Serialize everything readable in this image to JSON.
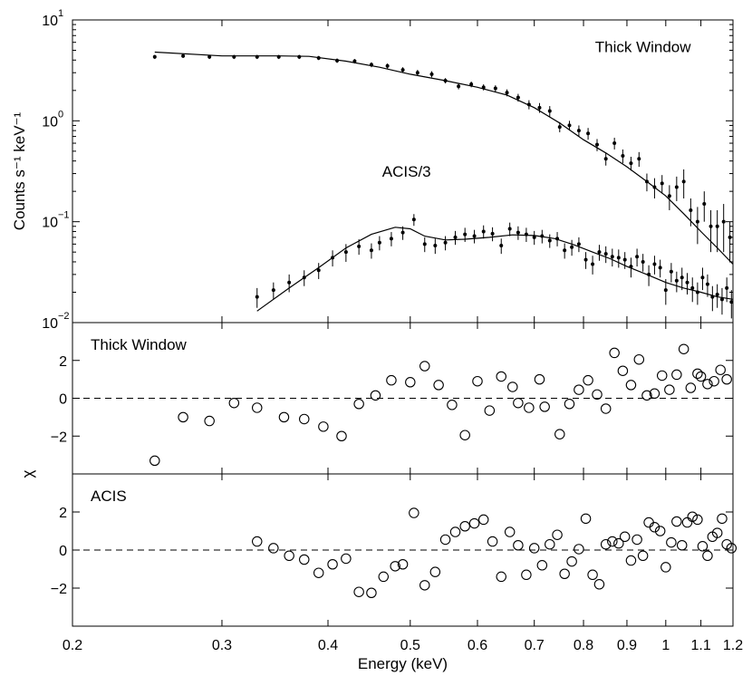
{
  "chart_data": [
    {
      "type": "scatter",
      "panel": "spectrum",
      "ylabel": "Counts s⁻¹ keV⁻¹",
      "yscale": "log",
      "ylim": [
        0.01,
        10
      ],
      "xscale": "log",
      "xlim": [
        0.2,
        1.2
      ],
      "y_ticks": [
        {
          "value": 10,
          "base": "10",
          "exp": "1"
        },
        {
          "value": 1,
          "base": "10",
          "exp": "0"
        },
        {
          "value": 0.1,
          "base": "10",
          "exp": "−1"
        },
        {
          "value": 0.01,
          "base": "10",
          "exp": "−2"
        }
      ],
      "annotations": [
        {
          "text": "Thick Window",
          "x": 0.94,
          "y": 4.8
        },
        {
          "text": "ACIS/3",
          "x": 0.495,
          "y": 0.28
        }
      ],
      "series": [
        {
          "name": "Thick Window data",
          "x": [
            0.25,
            0.27,
            0.29,
            0.31,
            0.33,
            0.35,
            0.37,
            0.39,
            0.41,
            0.43,
            0.45,
            0.47,
            0.49,
            0.51,
            0.53,
            0.55,
            0.57,
            0.59,
            0.61,
            0.63,
            0.65,
            0.67,
            0.69,
            0.71,
            0.73,
            0.75,
            0.77,
            0.79,
            0.81,
            0.83,
            0.85,
            0.87,
            0.89,
            0.91,
            0.93,
            0.95,
            0.97,
            0.99,
            1.01,
            1.03,
            1.05,
            1.07,
            1.09,
            1.11,
            1.13,
            1.15,
            1.17,
            1.19
          ],
          "y": [
            4.3,
            4.4,
            4.3,
            4.3,
            4.3,
            4.3,
            4.3,
            4.2,
            3.95,
            3.9,
            3.6,
            3.5,
            3.2,
            3.0,
            2.9,
            2.5,
            2.2,
            2.3,
            2.15,
            2.1,
            1.9,
            1.7,
            1.45,
            1.35,
            1.25,
            0.87,
            0.9,
            0.8,
            0.75,
            0.58,
            0.42,
            0.6,
            0.45,
            0.38,
            0.42,
            0.25,
            0.22,
            0.24,
            0.18,
            0.22,
            0.25,
            0.13,
            0.1,
            0.15,
            0.09,
            0.09,
            0.1,
            0.07
          ],
          "err_up": [
            0.2,
            0.2,
            0.2,
            0.2,
            0.2,
            0.2,
            0.2,
            0.2,
            0.2,
            0.2,
            0.2,
            0.2,
            0.2,
            0.2,
            0.2,
            0.15,
            0.15,
            0.15,
            0.15,
            0.15,
            0.15,
            0.15,
            0.15,
            0.15,
            0.15,
            0.1,
            0.1,
            0.1,
            0.1,
            0.08,
            0.06,
            0.08,
            0.07,
            0.06,
            0.07,
            0.05,
            0.05,
            0.05,
            0.05,
            0.06,
            0.08,
            0.04,
            0.04,
            0.05,
            0.04,
            0.04,
            0.05,
            0.03
          ],
          "err_down": [
            0.2,
            0.2,
            0.2,
            0.2,
            0.2,
            0.2,
            0.2,
            0.2,
            0.2,
            0.2,
            0.2,
            0.2,
            0.2,
            0.2,
            0.2,
            0.15,
            0.15,
            0.15,
            0.15,
            0.15,
            0.15,
            0.15,
            0.15,
            0.15,
            0.15,
            0.1,
            0.1,
            0.1,
            0.1,
            0.08,
            0.06,
            0.08,
            0.07,
            0.06,
            0.07,
            0.05,
            0.05,
            0.05,
            0.05,
            0.06,
            0.08,
            0.04,
            0.04,
            0.05,
            0.04,
            0.04,
            0.05,
            0.03
          ]
        },
        {
          "name": "Thick Window model",
          "style": "line",
          "x": [
            0.25,
            0.3,
            0.35,
            0.38,
            0.42,
            0.46,
            0.5,
            0.55,
            0.6,
            0.65,
            0.7,
            0.75,
            0.8,
            0.85,
            0.9,
            0.95,
            1.0,
            1.05,
            1.1,
            1.15,
            1.2
          ],
          "y": [
            4.8,
            4.4,
            4.4,
            4.35,
            3.9,
            3.4,
            2.9,
            2.5,
            2.15,
            1.8,
            1.35,
            0.95,
            0.65,
            0.48,
            0.35,
            0.25,
            0.18,
            0.12,
            0.08,
            0.055,
            0.038
          ]
        },
        {
          "name": "ACIS/3 data",
          "x": [
            0.33,
            0.345,
            0.36,
            0.375,
            0.39,
            0.405,
            0.42,
            0.435,
            0.45,
            0.46,
            0.475,
            0.49,
            0.505,
            0.52,
            0.535,
            0.55,
            0.565,
            0.58,
            0.595,
            0.61,
            0.625,
            0.64,
            0.655,
            0.67,
            0.685,
            0.7,
            0.715,
            0.73,
            0.745,
            0.76,
            0.775,
            0.79,
            0.805,
            0.82,
            0.835,
            0.85,
            0.865,
            0.88,
            0.895,
            0.91,
            0.925,
            0.94,
            0.955,
            0.97,
            0.985,
            1.0,
            1.015,
            1.03,
            1.045,
            1.06,
            1.075,
            1.09,
            1.105,
            1.12,
            1.135,
            1.15,
            1.165,
            1.18,
            1.195
          ],
          "y": [
            0.018,
            0.021,
            0.025,
            0.028,
            0.033,
            0.044,
            0.05,
            0.057,
            0.052,
            0.062,
            0.068,
            0.078,
            0.105,
            0.06,
            0.058,
            0.062,
            0.07,
            0.075,
            0.072,
            0.08,
            0.076,
            0.058,
            0.085,
            0.078,
            0.075,
            0.07,
            0.072,
            0.065,
            0.068,
            0.052,
            0.056,
            0.06,
            0.042,
            0.038,
            0.05,
            0.048,
            0.045,
            0.044,
            0.042,
            0.036,
            0.045,
            0.04,
            0.03,
            0.038,
            0.035,
            0.021,
            0.032,
            0.026,
            0.028,
            0.025,
            0.022,
            0.02,
            0.028,
            0.024,
            0.018,
            0.019,
            0.017,
            0.022,
            0.016
          ],
          "err_up": [
            0.004,
            0.004,
            0.005,
            0.005,
            0.006,
            0.008,
            0.01,
            0.01,
            0.009,
            0.01,
            0.011,
            0.012,
            0.014,
            0.01,
            0.01,
            0.01,
            0.011,
            0.012,
            0.011,
            0.012,
            0.012,
            0.01,
            0.013,
            0.012,
            0.012,
            0.011,
            0.011,
            0.01,
            0.011,
            0.009,
            0.01,
            0.01,
            0.008,
            0.008,
            0.009,
            0.009,
            0.009,
            0.009,
            0.008,
            0.008,
            0.009,
            0.008,
            0.007,
            0.008,
            0.007,
            0.006,
            0.007,
            0.006,
            0.007,
            0.006,
            0.006,
            0.005,
            0.007,
            0.006,
            0.005,
            0.005,
            0.005,
            0.006,
            0.005
          ],
          "err_down": [
            0.004,
            0.004,
            0.005,
            0.005,
            0.006,
            0.008,
            0.01,
            0.01,
            0.009,
            0.01,
            0.011,
            0.012,
            0.014,
            0.01,
            0.01,
            0.01,
            0.011,
            0.012,
            0.011,
            0.012,
            0.012,
            0.01,
            0.013,
            0.012,
            0.012,
            0.011,
            0.011,
            0.01,
            0.011,
            0.009,
            0.01,
            0.01,
            0.008,
            0.008,
            0.009,
            0.009,
            0.009,
            0.009,
            0.008,
            0.008,
            0.009,
            0.008,
            0.007,
            0.008,
            0.007,
            0.006,
            0.007,
            0.006,
            0.007,
            0.006,
            0.006,
            0.005,
            0.007,
            0.006,
            0.005,
            0.005,
            0.005,
            0.006,
            0.005
          ]
        },
        {
          "name": "ACIS/3 model",
          "style": "line",
          "x": [
            0.33,
            0.36,
            0.39,
            0.42,
            0.45,
            0.48,
            0.5,
            0.52,
            0.55,
            0.58,
            0.62,
            0.66,
            0.7,
            0.74,
            0.78,
            0.82,
            0.86,
            0.9,
            0.95,
            1.0,
            1.05,
            1.1,
            1.15,
            1.2
          ],
          "y": [
            0.013,
            0.022,
            0.035,
            0.055,
            0.075,
            0.088,
            0.085,
            0.072,
            0.066,
            0.067,
            0.07,
            0.074,
            0.073,
            0.068,
            0.059,
            0.05,
            0.043,
            0.036,
            0.03,
            0.025,
            0.022,
            0.02,
            0.018,
            0.017
          ]
        }
      ]
    },
    {
      "type": "scatter",
      "panel": "residuals",
      "label": "Thick Window",
      "ylim": [
        -4,
        4
      ],
      "yticks": [
        -2,
        0,
        2
      ],
      "xscale": "log",
      "xlim": [
        0.2,
        1.2
      ],
      "x": [
        0.25,
        0.27,
        0.29,
        0.31,
        0.33,
        0.355,
        0.375,
        0.395,
        0.415,
        0.435,
        0.455,
        0.475,
        0.5,
        0.52,
        0.54,
        0.56,
        0.58,
        0.6,
        0.62,
        0.64,
        0.66,
        0.67,
        0.69,
        0.71,
        0.72,
        0.75,
        0.77,
        0.79,
        0.81,
        0.83,
        0.85,
        0.87,
        0.89,
        0.91,
        0.93,
        0.95,
        0.97,
        0.99,
        1.01,
        1.03,
        1.05,
        1.07,
        1.09,
        1.1,
        1.12,
        1.14,
        1.16,
        1.18
      ],
      "y": [
        -3.3,
        -1.0,
        -1.2,
        -0.25,
        -0.5,
        -1.0,
        -1.1,
        -1.5,
        -2.0,
        -0.3,
        0.15,
        0.95,
        0.85,
        1.7,
        0.7,
        -0.35,
        -1.95,
        0.9,
        -0.65,
        1.15,
        0.6,
        -0.25,
        -0.5,
        1.0,
        -0.45,
        -1.9,
        -0.3,
        0.45,
        0.95,
        0.2,
        -0.55,
        2.4,
        1.45,
        0.7,
        2.05,
        0.15,
        0.25,
        1.2,
        0.45,
        1.25,
        2.6,
        0.55,
        1.3,
        1.15,
        0.75,
        0.9,
        1.5,
        1.0
      ]
    },
    {
      "type": "scatter",
      "panel": "residuals",
      "label": "ACIS",
      "ylim": [
        -4,
        4
      ],
      "yticks": [
        -2,
        0,
        2
      ],
      "xscale": "log",
      "xlim": [
        0.2,
        1.2
      ],
      "x": [
        0.33,
        0.345,
        0.36,
        0.375,
        0.39,
        0.405,
        0.42,
        0.435,
        0.45,
        0.465,
        0.48,
        0.49,
        0.505,
        0.52,
        0.535,
        0.55,
        0.565,
        0.58,
        0.595,
        0.61,
        0.625,
        0.64,
        0.655,
        0.67,
        0.685,
        0.7,
        0.715,
        0.73,
        0.745,
        0.76,
        0.775,
        0.79,
        0.805,
        0.82,
        0.835,
        0.85,
        0.865,
        0.88,
        0.895,
        0.91,
        0.925,
        0.94,
        0.955,
        0.97,
        0.985,
        1.0,
        1.015,
        1.03,
        1.045,
        1.06,
        1.075,
        1.09,
        1.105,
        1.12,
        1.135,
        1.15,
        1.165,
        1.18,
        1.195
      ],
      "y": [
        0.45,
        0.1,
        -0.3,
        -0.5,
        -1.2,
        -0.75,
        -0.45,
        -2.2,
        -2.25,
        -1.4,
        -0.85,
        -0.75,
        1.95,
        -1.85,
        -1.15,
        0.55,
        0.95,
        1.25,
        1.4,
        1.6,
        0.45,
        -1.4,
        0.95,
        0.25,
        -1.3,
        0.1,
        -0.8,
        0.3,
        0.8,
        -1.25,
        -0.6,
        0.05,
        1.65,
        -1.3,
        -1.8,
        0.3,
        0.45,
        0.35,
        0.7,
        -0.55,
        0.55,
        -0.3,
        1.45,
        1.2,
        1.0,
        -0.9,
        0.4,
        1.5,
        0.25,
        1.45,
        1.75,
        1.6,
        0.2,
        -0.3,
        0.7,
        0.9,
        1.65,
        0.3,
        0.1
      ]
    }
  ],
  "axes": {
    "xlabel": "Energy (keV)",
    "xticks": [
      {
        "value": 0.2,
        "label": "0.2"
      },
      {
        "value": 0.3,
        "label": "0.3"
      },
      {
        "value": 0.4,
        "label": "0.4"
      },
      {
        "value": 0.5,
        "label": "0.5"
      },
      {
        "value": 0.6,
        "label": "0.6"
      },
      {
        "value": 0.7,
        "label": "0.7"
      },
      {
        "value": 0.8,
        "label": "0.8"
      },
      {
        "value": 0.9,
        "label": "0.9"
      },
      {
        "value": 1.0,
        "label": "1"
      },
      {
        "value": 1.1,
        "label": "1.1"
      },
      {
        "value": 1.2,
        "label": "1.2"
      }
    ],
    "residual_ylabel": "χ"
  }
}
